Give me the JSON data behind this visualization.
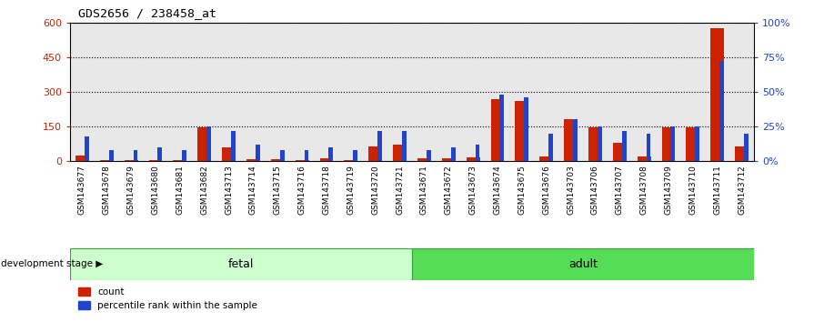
{
  "title": "GDS2656 / 238458_at",
  "samples": [
    "GSM143677",
    "GSM143678",
    "GSM143679",
    "GSM143680",
    "GSM143681",
    "GSM143682",
    "GSM143713",
    "GSM143714",
    "GSM143715",
    "GSM143716",
    "GSM143718",
    "GSM143719",
    "GSM143720",
    "GSM143721",
    "GSM143671",
    "GSM143672",
    "GSM143673",
    "GSM143674",
    "GSM143675",
    "GSM143676",
    "GSM143703",
    "GSM143706",
    "GSM143707",
    "GSM143708",
    "GSM143709",
    "GSM143710",
    "GSM143711",
    "GSM143712"
  ],
  "count": [
    22,
    3,
    3,
    5,
    5,
    145,
    60,
    8,
    6,
    5,
    12,
    5,
    65,
    70,
    10,
    10,
    15,
    270,
    260,
    20,
    180,
    145,
    80,
    20,
    145,
    145,
    575,
    65
  ],
  "percentile": [
    18,
    8,
    8,
    10,
    8,
    25,
    22,
    12,
    8,
    8,
    10,
    8,
    22,
    22,
    8,
    10,
    12,
    48,
    46,
    20,
    30,
    25,
    22,
    20,
    25,
    25,
    72,
    20
  ],
  "fetal_count": 14,
  "left_ylim": [
    0,
    600
  ],
  "right_ylim": [
    0,
    100
  ],
  "left_yticks": [
    0,
    150,
    300,
    450,
    600
  ],
  "right_yticks": [
    0,
    25,
    50,
    75,
    100
  ],
  "count_color": "#cc2200",
  "percentile_color": "#2244cc",
  "fetal_color": "#ccffcc",
  "adult_color": "#55dd55",
  "plot_bg_color": "#e8e8e8",
  "bg_color": "#ffffff"
}
